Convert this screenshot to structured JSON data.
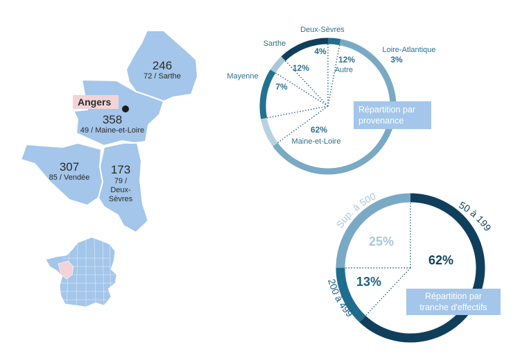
{
  "map": {
    "city": "Angers",
    "departments": [
      {
        "id": "sarthe",
        "value": "246",
        "label": "72 / Sarthe"
      },
      {
        "id": "maine-et-loire",
        "value": "358",
        "label": "49 / Maine-et-Loire"
      },
      {
        "id": "vendee",
        "value": "307",
        "label": "85 / Vendée"
      },
      {
        "id": "deux-sevres",
        "value": "173",
        "label_lines": [
          "79 /",
          "Deux-",
          "Sèvres"
        ]
      }
    ],
    "colors": {
      "region": "#a3c6ea",
      "highlight": "#f2d3d8",
      "france": "#a3c6ea"
    }
  },
  "chart_data": [
    {
      "type": "pie",
      "title": "Répartition par provenance",
      "slices": [
        {
          "name": "Loire-Atlantique",
          "value": 3
        },
        {
          "name": "Maine-et-Loire",
          "value": 62
        },
        {
          "name": "Mayenne",
          "value": 7
        },
        {
          "name": "Sarthe",
          "value": 12
        },
        {
          "name": "Deux-Sèvres",
          "value": 4
        },
        {
          "name": "Autre",
          "value": 12
        }
      ]
    },
    {
      "type": "pie",
      "title": "Répartition par tranche d'effectifs",
      "slices": [
        {
          "name": "50 à 199",
          "value": 62
        },
        {
          "name": "200 à 499",
          "value": 13
        },
        {
          "name": "Sup. à 500",
          "value": 25
        }
      ]
    }
  ],
  "labels": {
    "loire_atl": "Loire-Atlantique",
    "loire_atl_pct": "3%",
    "autre_pct": "12%",
    "autre": "Autre",
    "deux_sevres": "Deux-Sèvres",
    "deux_sevres_pct": "4%",
    "sarthe": "Sarthe",
    "sarthe_pct": "12%",
    "mayenne": "Mayenne",
    "mayenne_pct": "7%",
    "mel_pct": "62%",
    "mel": "Maine-et-Loire",
    "prov_title_1": "Répartition par",
    "prov_title_2": "provenance",
    "eff_50": "50 à 199",
    "eff_50_pct": "62%",
    "eff_200": "200 à 499",
    "eff_200_pct": "13%",
    "eff_500": "Sup. à 500",
    "eff_500_pct": "25%",
    "eff_title_1": "Répartition par",
    "eff_title_2": "tranche d'effectifs"
  }
}
